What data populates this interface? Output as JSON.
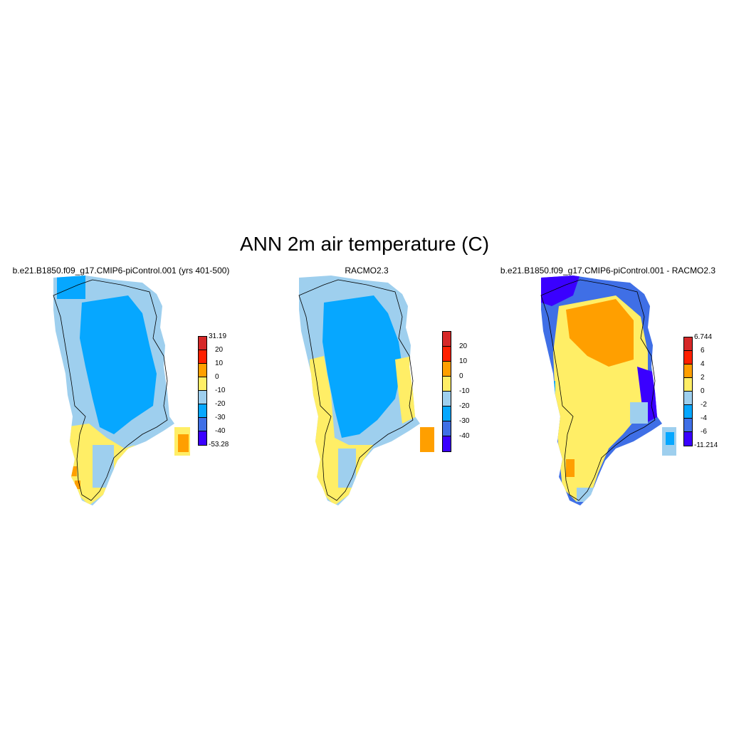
{
  "figure": {
    "title": "ANN 2m air temperature (C)"
  },
  "panels": [
    {
      "id": "model",
      "title": "b.e21.B1850.f09_g17.CMIP6-piControl.001 (yrs 401-500)",
      "colorbar": {
        "labels": [
          "31.19",
          "20",
          "10",
          "0",
          "-10",
          "-20",
          "-30",
          "-40",
          "-53.28"
        ],
        "colors": [
          "#d62828",
          "#ff2000",
          "#ff9f00",
          "#ffee66",
          "#9ecfee",
          "#06a7ff",
          "#3f6fe6",
          "#3a00ff"
        ]
      }
    },
    {
      "id": "obs",
      "title": "RACMO2.3",
      "colorbar": {
        "labels": [
          "20",
          "10",
          "0",
          "-10",
          "-20",
          "-30",
          "-40"
        ],
        "colors": [
          "#d62828",
          "#ff2000",
          "#ff9f00",
          "#ffee66",
          "#9ecfee",
          "#06a7ff",
          "#3f6fe6",
          "#3a00ff"
        ]
      }
    },
    {
      "id": "diff",
      "title": "b.e21.B1850.f09_g17.CMIP6-piControl.001 - RACMO2.3",
      "colorbar": {
        "labels": [
          "6.744",
          "6",
          "4",
          "2",
          "0",
          "-2",
          "-4",
          "-6",
          "-11.214"
        ],
        "colors": [
          "#d62828",
          "#ff2000",
          "#ff9f00",
          "#ffee66",
          "#9ecfee",
          "#06a7ff",
          "#3f6fe6",
          "#3a00ff"
        ]
      }
    }
  ]
}
